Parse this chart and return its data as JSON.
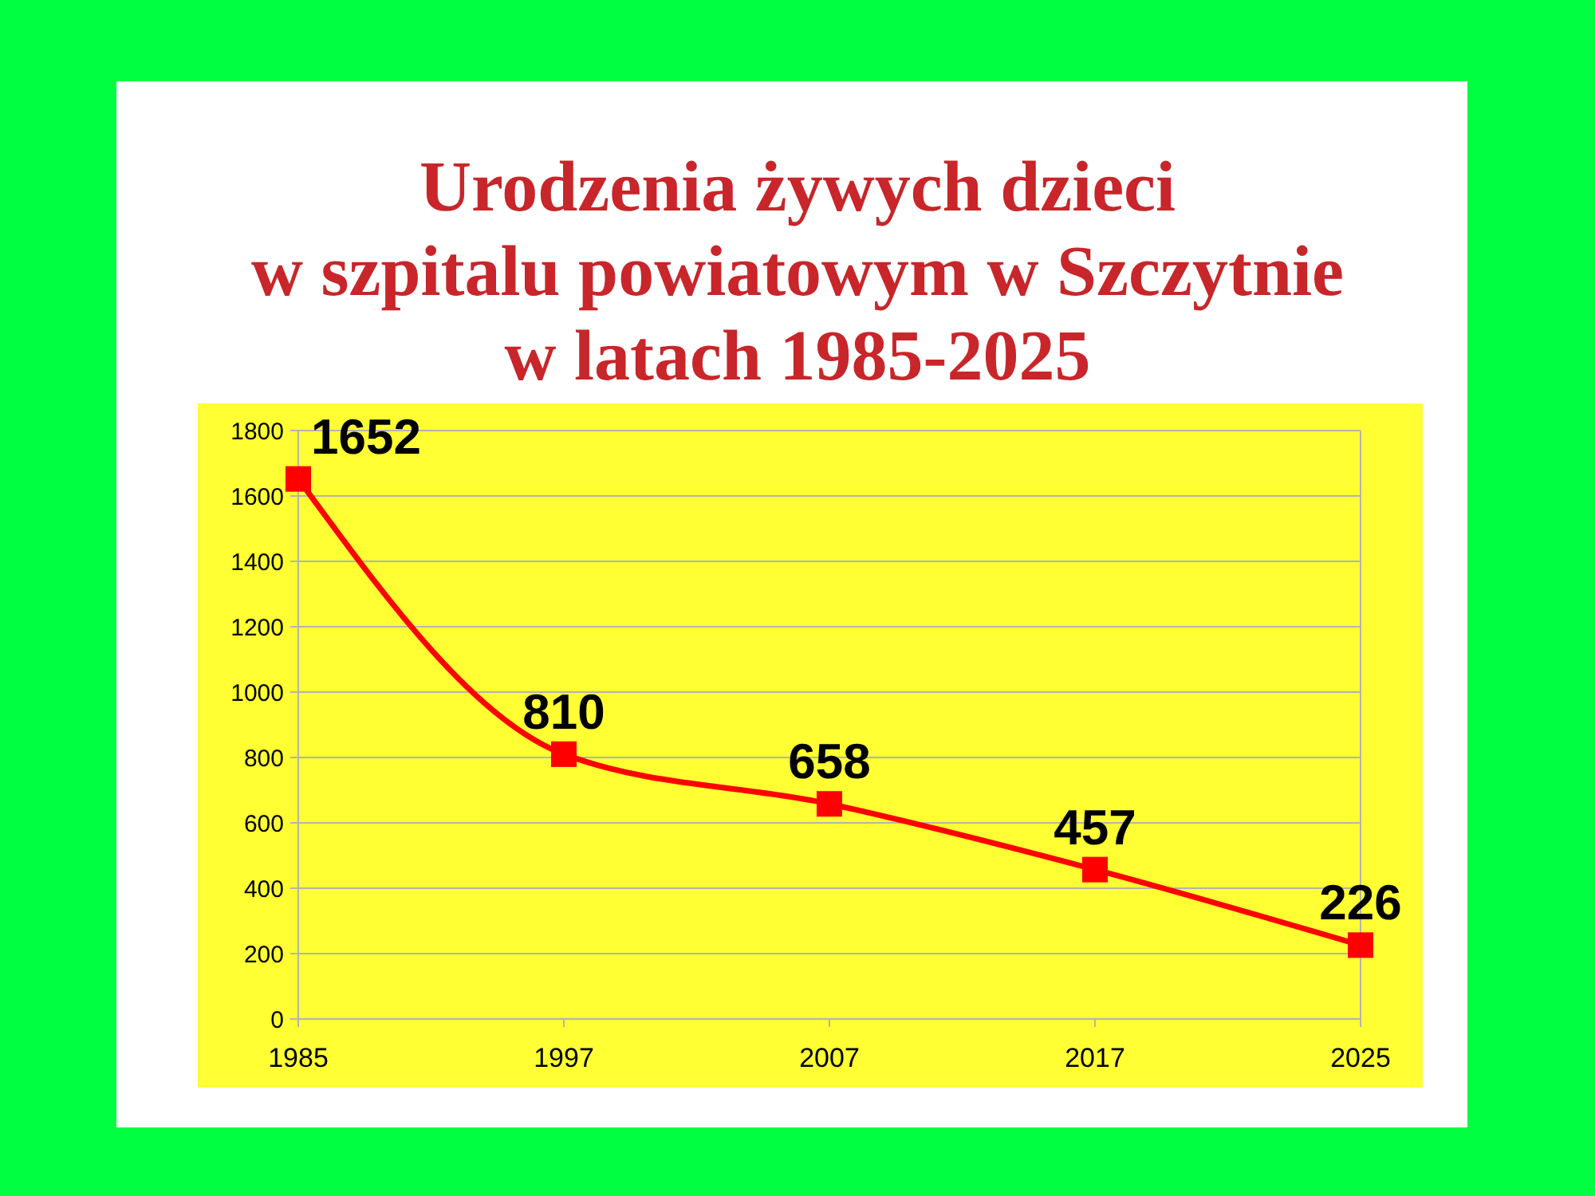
{
  "chart_data": {
    "type": "line",
    "title": "Urodzenia żywych dzieci\nw szpitalu powiatowym w Szczytnie\nw latach 1985-2025",
    "categories": [
      "1985",
      "1997",
      "2007",
      "2017",
      "2025"
    ],
    "series": [
      {
        "color": "#ff0000",
        "values": [
          1652,
          810,
          658,
          457,
          226
        ]
      }
    ],
    "ylim": [
      0,
      1800
    ],
    "yticks": [
      0,
      200,
      400,
      600,
      800,
      1000,
      1200,
      1400,
      1600,
      1800
    ],
    "grid": "y",
    "marker": "square",
    "line_style": "solid",
    "data_labels": true
  }
}
